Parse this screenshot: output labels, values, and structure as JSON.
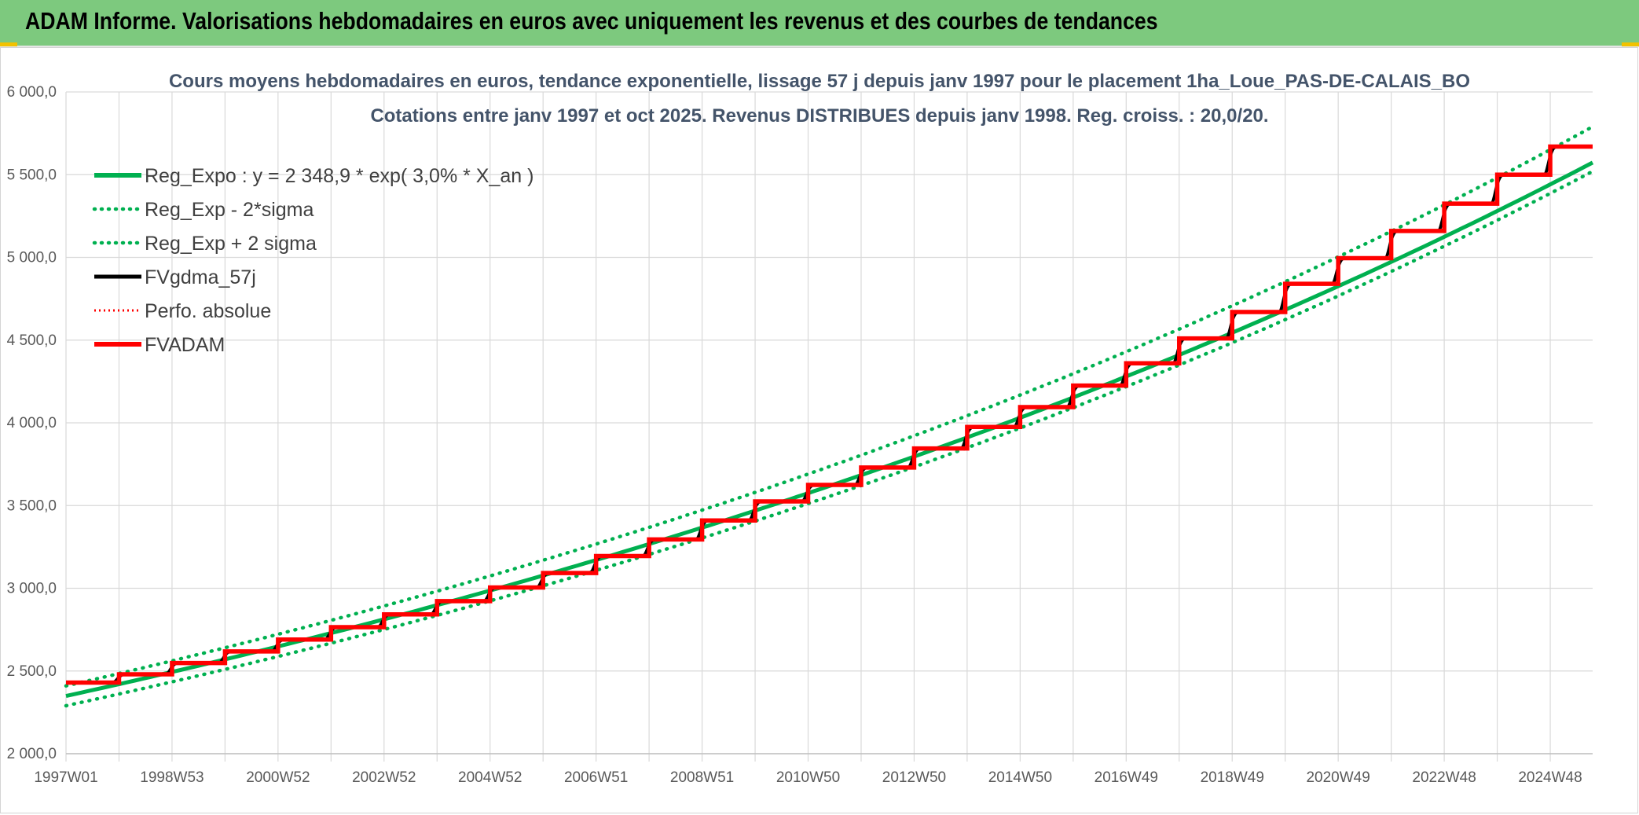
{
  "banner": {
    "title": "ADAM Informe. Valorisations hebdomadaires en euros avec uniquement les revenus et des courbes de tendances"
  },
  "colors": {
    "banner": "#7dc97e",
    "reg_expo": "#00b050",
    "fvgdma": "#000000",
    "fvadam": "#ff0000",
    "grid": "#d9d9d9"
  },
  "chart_data": {
    "type": "line",
    "title": [
      "Cours moyens hebdomadaires en euros, tendance exponentielle, lissage 57 j depuis janv 1997 pour le placement 1ha_Loue_PAS-DE-CALAIS_BO",
      "Cotations entre janv 1997 et oct 2025. Revenus DISTRIBUES depuis janv 1998. Reg. croiss. : 20,0/20."
    ],
    "xlabel": "",
    "ylabel": "",
    "ylim": [
      2000,
      6000
    ],
    "y_ticks": [
      "2 000,0",
      "2 500,0",
      "3 000,0",
      "3 500,0",
      "4 000,0",
      "4 500,0",
      "5 000,0",
      "5 500,0",
      "6 000,0"
    ],
    "x_tick_labels": [
      "1997W01",
      "1998W53",
      "2000W52",
      "2002W52",
      "2004W52",
      "2006W51",
      "2008W51",
      "2010W50",
      "2012W50",
      "2014W50",
      "2016W49",
      "2018W49",
      "2020W49",
      "2022W48",
      "2024W48"
    ],
    "x_range_years": [
      1997.0,
      2025.8
    ],
    "legend_position": "top-left",
    "grid": true,
    "trend_formula": "Reg_Expo : y = 2 348,9 * exp( 3,0% *  X_an )",
    "trend_base": 2348.9,
    "trend_rate": 0.03,
    "series": [
      {
        "name": "Reg_Expo : y = 2 348,9 * exp( 3,0% *  X_an )",
        "style": "solid",
        "color": "#00b050"
      },
      {
        "name": "Reg_Exp - 2*sigma",
        "style": "dotted",
        "color": "#00b050"
      },
      {
        "name": "Reg_Exp + 2 sigma",
        "style": "dotted",
        "color": "#00b050"
      },
      {
        "name": "FVgdma_57j",
        "style": "solid",
        "color": "#000000"
      },
      {
        "name": "Perfo. absolue",
        "style": "dotted",
        "color": "#ff0000"
      },
      {
        "name": "FVADAM",
        "style": "solid",
        "color": "#ff0000"
      }
    ],
    "lower_band_start_end": [
      2290,
      5520
    ],
    "upper_band_start_end": [
      2410,
      5790
    ],
    "steps": [
      {
        "x": 1997.0,
        "y": 2430
      },
      {
        "x": 1998.0,
        "y": 2480
      },
      {
        "x": 1999.0,
        "y": 2548
      },
      {
        "x": 2000.0,
        "y": 2618
      },
      {
        "x": 2001.0,
        "y": 2690
      },
      {
        "x": 2002.0,
        "y": 2765
      },
      {
        "x": 2003.0,
        "y": 2842
      },
      {
        "x": 2004.0,
        "y": 2922
      },
      {
        "x": 2005.0,
        "y": 3005
      },
      {
        "x": 2006.0,
        "y": 3092
      },
      {
        "x": 2007.0,
        "y": 3195
      },
      {
        "x": 2008.0,
        "y": 3295
      },
      {
        "x": 2009.0,
        "y": 3410
      },
      {
        "x": 2010.0,
        "y": 3525
      },
      {
        "x": 2011.0,
        "y": 3625
      },
      {
        "x": 2012.0,
        "y": 3730
      },
      {
        "x": 2013.0,
        "y": 3845
      },
      {
        "x": 2014.0,
        "y": 3975
      },
      {
        "x": 2015.0,
        "y": 4095
      },
      {
        "x": 2016.0,
        "y": 4225
      },
      {
        "x": 2017.0,
        "y": 4360
      },
      {
        "x": 2018.0,
        "y": 4510
      },
      {
        "x": 2019.0,
        "y": 4670
      },
      {
        "x": 2020.0,
        "y": 4840
      },
      {
        "x": 2021.0,
        "y": 4995
      },
      {
        "x": 2022.0,
        "y": 5160
      },
      {
        "x": 2023.0,
        "y": 5325
      },
      {
        "x": 2024.0,
        "y": 5500
      },
      {
        "x": 2025.0,
        "y": 5670
      }
    ]
  }
}
